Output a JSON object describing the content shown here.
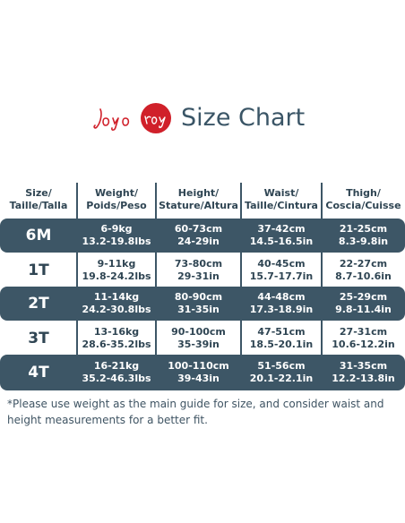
{
  "brand": {
    "logo_text": "Joyo roy",
    "title": "Size Chart"
  },
  "table": {
    "headers": [
      [
        "Size/",
        "Taille/Talla"
      ],
      [
        "Weight/",
        "Poids/Peso"
      ],
      [
        "Height/",
        "Stature/Altura"
      ],
      [
        "Waist/",
        "Taille/Cintura"
      ],
      [
        "Thigh/",
        "Coscia/Cuisse"
      ]
    ],
    "rows": [
      {
        "size": "6M",
        "weight": [
          "6-9kg",
          "13.2-19.8lbs"
        ],
        "height": [
          "60-73cm",
          "24-29in"
        ],
        "waist": [
          "37-42cm",
          "14.5-16.5in"
        ],
        "thigh": [
          "21-25cm",
          "8.3-9.8in"
        ]
      },
      {
        "size": "1T",
        "weight": [
          "9-11kg",
          "19.8-24.2lbs"
        ],
        "height": [
          "73-80cm",
          "29-31in"
        ],
        "waist": [
          "40-45cm",
          "15.7-17.7in"
        ],
        "thigh": [
          "22-27cm",
          "8.7-10.6in"
        ]
      },
      {
        "size": "2T",
        "weight": [
          "11-14kg",
          "24.2-30.8lbs"
        ],
        "height": [
          "80-90cm",
          "31-35in"
        ],
        "waist": [
          "44-48cm",
          "17.3-18.9in"
        ],
        "thigh": [
          "25-29cm",
          "9.8-11.4in"
        ]
      },
      {
        "size": "3T",
        "weight": [
          "13-16kg",
          "28.6-35.2lbs"
        ],
        "height": [
          "90-100cm",
          "35-39in"
        ],
        "waist": [
          "47-51cm",
          "18.5-20.1in"
        ],
        "thigh": [
          "27-31cm",
          "10.6-12.2in"
        ]
      },
      {
        "size": "4T",
        "weight": [
          "16-21kg",
          "35.2-46.3lbs"
        ],
        "height": [
          "100-110cm",
          "39-43in"
        ],
        "waist": [
          "51-56cm",
          "20.1-22.1in"
        ],
        "thigh": [
          "31-35cm",
          "12.2-13.8in"
        ]
      }
    ]
  },
  "note": "*Please use weight as the main guide for size, and consider waist and height measurements for a better fit.",
  "colors": {
    "dark_row": "#3d5666",
    "logo_red": "#d0202a",
    "text": "#2f4553"
  }
}
